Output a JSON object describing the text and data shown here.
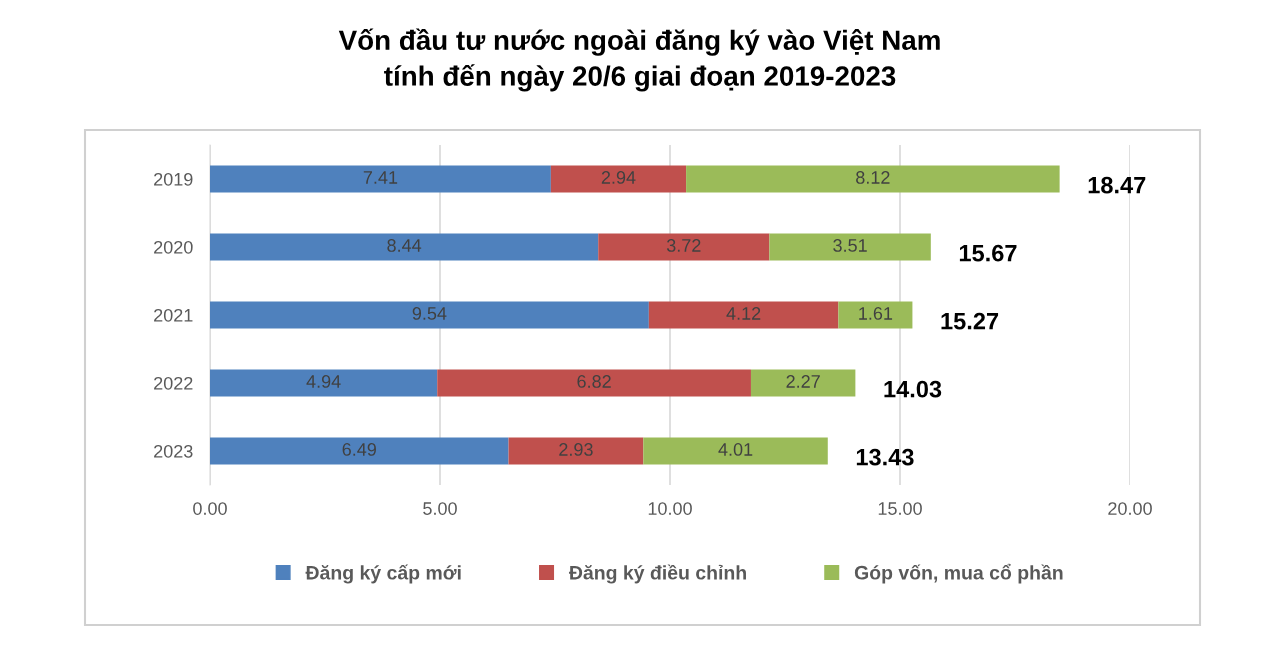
{
  "chart_data": {
    "type": "bar",
    "orientation": "horizontal",
    "stacked": true,
    "title": "Vốn đầu tư nước ngoài đăng ký vào Việt Nam\ntính đến ngày 20/6 giai đoạn 2019-2023",
    "categories": [
      "2019",
      "2020",
      "2021",
      "2022",
      "2023"
    ],
    "series": [
      {
        "name": "Đăng ký cấp mới",
        "color": "#4f81bd",
        "values": [
          7.41,
          8.44,
          9.54,
          4.94,
          6.49
        ]
      },
      {
        "name": "Đăng ký điều chỉnh",
        "color": "#c0504d",
        "values": [
          2.94,
          3.72,
          4.12,
          6.82,
          2.93
        ]
      },
      {
        "name": "Góp vốn, mua cổ phần",
        "color": "#9bbb59",
        "values": [
          8.12,
          3.51,
          1.61,
          2.27,
          4.01
        ]
      }
    ],
    "totals": [
      "18.47",
      "15.67",
      "15.27",
      "14.03",
      "13.43"
    ],
    "data_labels": true,
    "xlim": [
      0,
      20
    ],
    "xticks": [
      {
        "value": 0,
        "label": "0.00"
      },
      {
        "value": 5,
        "label": "5.00"
      },
      {
        "value": 10,
        "label": "10.00"
      },
      {
        "value": 15,
        "label": "15.00"
      },
      {
        "value": 20,
        "label": "20.00"
      }
    ],
    "grid": "x",
    "legend": "bottom"
  }
}
